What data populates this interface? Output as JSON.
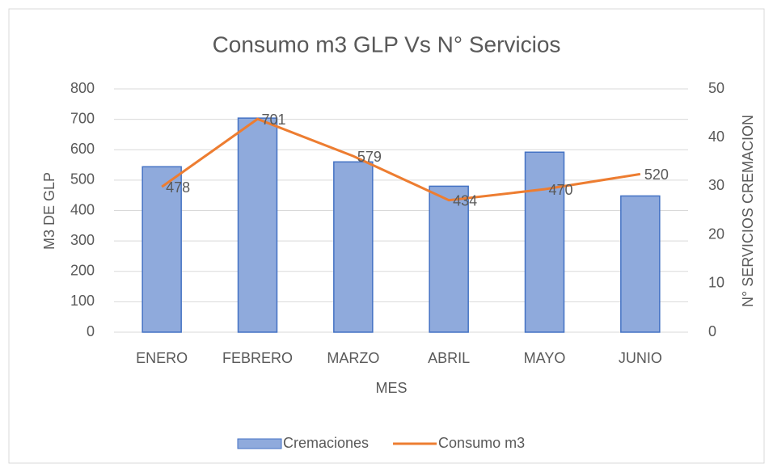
{
  "chart_data": {
    "type": "bar_line",
    "title": "Consumo m3 GLP Vs N° Servicios",
    "x_label": "MES",
    "y_label": "M3 DE GLP",
    "y2_label": "N° SERVICIOS CREMACION",
    "categories": [
      "ENERO",
      "FEBRERO",
      "MARZO",
      "ABRIL",
      "MAYO",
      "JUNIO"
    ],
    "series": [
      {
        "name": "Cremaciones",
        "type": "bar",
        "axis": "y2",
        "color": "#8faadc",
        "values": [
          34,
          44,
          35,
          30,
          37,
          28
        ]
      },
      {
        "name": "Consumo m3",
        "type": "line",
        "axis": "y",
        "color": "#ed7d31",
        "values": [
          478,
          701,
          579,
          434,
          470,
          520
        ]
      }
    ],
    "ylim": [
      0,
      800
    ],
    "yticks": [
      0,
      100,
      200,
      300,
      400,
      500,
      600,
      700,
      800
    ],
    "y2lim": [
      0,
      50
    ],
    "y2ticks": [
      0,
      10,
      20,
      30,
      40,
      50
    ],
    "grid": true,
    "legend": "bottom"
  }
}
